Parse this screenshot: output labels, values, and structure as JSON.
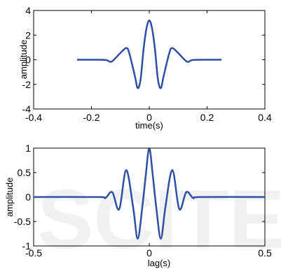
{
  "chart_data": [
    {
      "type": "line",
      "xlabel": "time(s)",
      "ylabel": "amplitude",
      "xlim": [
        -0.4,
        0.4
      ],
      "ylim": [
        -4,
        4
      ],
      "xticks": [
        -0.4,
        -0.2,
        0,
        0.2,
        0.4
      ],
      "xtick_labels": [
        "-0.4",
        "-0.2",
        "0",
        "0.2",
        "0.4"
      ],
      "yticks": [
        -4,
        -2,
        0,
        2,
        4
      ],
      "ytick_labels": [
        "-4",
        "-2",
        "0",
        "2",
        "4"
      ],
      "grid": false,
      "series": [
        {
          "color": "#2e4fa3",
          "x": [
            -0.25,
            -0.2,
            -0.15,
            -0.13,
            -0.1,
            -0.08,
            -0.07,
            -0.05,
            -0.04,
            -0.03,
            -0.02,
            -0.01,
            0,
            0.01,
            0.02,
            0.03,
            0.04,
            0.05,
            0.07,
            0.08,
            0.1,
            0.13,
            0.15,
            0.2,
            0.25
          ],
          "y": [
            0,
            0,
            -0.02,
            -0.15,
            0.55,
            0.95,
            0.6,
            -1.3,
            -2.3,
            -1.6,
            0.8,
            2.5,
            3.2,
            2.5,
            0.8,
            -1.6,
            -2.3,
            -1.3,
            0.6,
            0.95,
            0.55,
            -0.15,
            -0.02,
            0,
            0
          ]
        }
      ]
    },
    {
      "type": "line",
      "xlabel": "lag(s)",
      "ylabel": "amplitude",
      "xlim": [
        -0.5,
        0.5
      ],
      "ylim": [
        -1,
        1
      ],
      "xticks": [
        -0.5,
        0,
        0.5
      ],
      "xtick_labels": [
        "-0.5",
        "0",
        "0.5"
      ],
      "yticks": [
        -1,
        -0.5,
        0,
        0.5,
        1
      ],
      "ytick_labels": [
        "-1",
        "-0.5",
        "0",
        "0.5",
        "1"
      ],
      "grid": false,
      "series": [
        {
          "color": "#2e4fa3",
          "x": [
            -0.5,
            -0.22,
            -0.19,
            -0.16,
            -0.13,
            -0.1,
            -0.07,
            -0.05,
            -0.03,
            -0.015,
            0,
            0.015,
            0.03,
            0.05,
            0.07,
            0.1,
            0.13,
            0.16,
            0.19,
            0.22,
            0.5
          ],
          "y": [
            0,
            0,
            -0.02,
            0.1,
            -0.25,
            0.55,
            -0.2,
            -0.85,
            -0.2,
            0.45,
            1,
            0.45,
            -0.2,
            -0.85,
            -0.2,
            0.55,
            -0.25,
            0.1,
            -0.02,
            0,
            0
          ]
        }
      ]
    }
  ]
}
